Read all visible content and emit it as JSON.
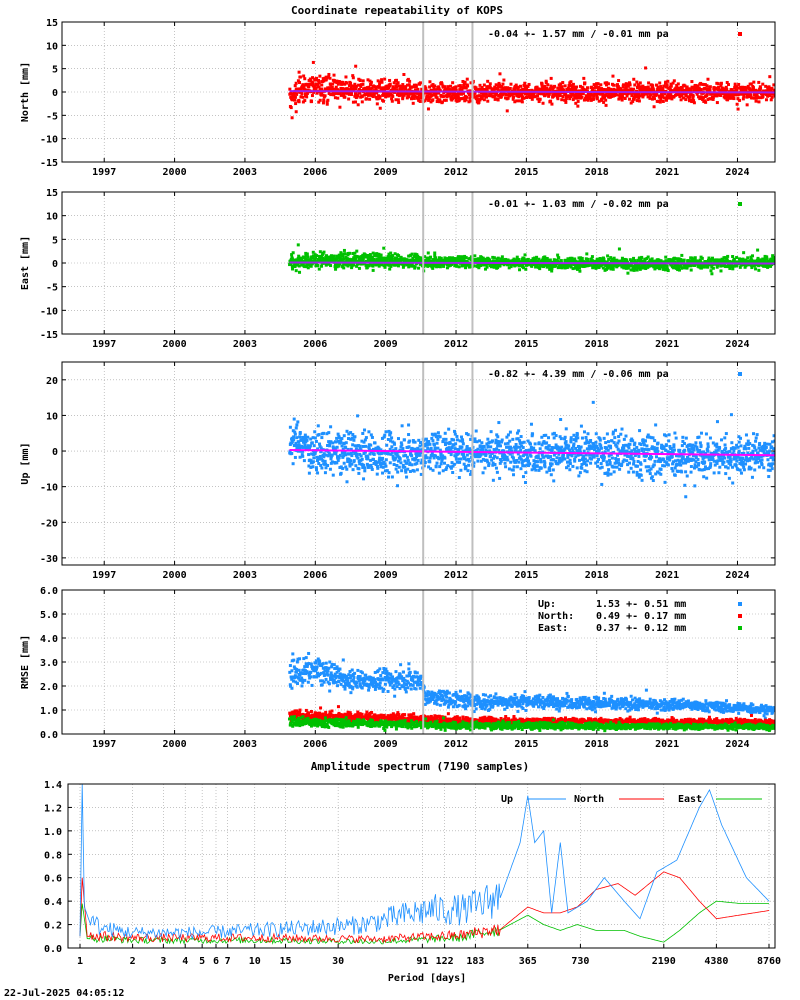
{
  "timestamp": "22-Jul-2025 04:05:12",
  "chart_data": [
    {
      "id": "north",
      "type": "scatter",
      "title": "Coordinate repeatability of KOPS",
      "ylabel": "North [mm]",
      "ylim": [
        -15,
        15
      ],
      "yticks": [
        -15,
        -10,
        -5,
        0,
        5,
        10,
        15
      ],
      "xlim": [
        1995.2,
        2025.6
      ],
      "xticks": [
        1997,
        2000,
        2003,
        2006,
        2009,
        2012,
        2015,
        2018,
        2021,
        2024
      ],
      "grid": true,
      "legend_position": "top-right",
      "color": "#ff0000",
      "trend_color": "#a020f0",
      "stats": "-0.04 +- 1.57 mm / -0.01 mm pa",
      "data_start": 2004.9,
      "data_end": 2025.6,
      "trend": [
        [
          2004.9,
          0.2
        ],
        [
          2025.6,
          -0.1
        ]
      ],
      "band": [
        [
          2004.9,
          -4.0,
          0.5
        ],
        [
          2005.3,
          -2.5,
          3.5
        ],
        [
          2006.0,
          -2.0,
          4.0
        ],
        [
          2007.5,
          -2.0,
          3.0
        ],
        [
          2010.4,
          -2.5,
          2.0
        ],
        [
          2013.0,
          -2.0,
          2.0
        ],
        [
          2018.0,
          -2.0,
          2.0
        ],
        [
          2025.6,
          -2.0,
          2.0
        ]
      ],
      "gaps": [
        2010.6,
        2012.7
      ]
    },
    {
      "id": "east",
      "type": "scatter",
      "ylabel": "East [mm]",
      "ylim": [
        -15,
        15
      ],
      "yticks": [
        -15,
        -10,
        -5,
        0,
        5,
        10,
        15
      ],
      "xlim": [
        1995.2,
        2025.6
      ],
      "xticks": [
        1997,
        2000,
        2003,
        2006,
        2009,
        2012,
        2015,
        2018,
        2021,
        2024
      ],
      "grid": true,
      "legend_position": "top-right",
      "color": "#00c000",
      "trend_color": "#a020f0",
      "stats": "-0.01 +- 1.03 mm / -0.02 mm pa",
      "data_start": 2004.9,
      "data_end": 2025.6,
      "trend": [
        [
          2004.9,
          0.1
        ],
        [
          2025.6,
          -0.1
        ]
      ],
      "band": [
        [
          2004.9,
          -1.5,
          2.0
        ],
        [
          2006.0,
          -1.0,
          2.2
        ],
        [
          2010.0,
          -1.0,
          1.8
        ],
        [
          2015.0,
          -1.0,
          1.2
        ],
        [
          2020.0,
          -1.5,
          1.0
        ],
        [
          2025.6,
          -1.0,
          1.5
        ]
      ],
      "gaps": [
        2010.6,
        2012.7
      ]
    },
    {
      "id": "up",
      "type": "scatter",
      "ylabel": "Up [mm]",
      "ylim": [
        -32,
        25
      ],
      "yticks": [
        -30,
        -20,
        -10,
        0,
        10,
        20
      ],
      "xlim": [
        1995.2,
        2025.6
      ],
      "xticks": [
        1997,
        2000,
        2003,
        2006,
        2009,
        2012,
        2015,
        2018,
        2021,
        2024
      ],
      "grid": true,
      "legend_position": "top-right",
      "color": "#1e90ff",
      "trend_color": "#ff00ff",
      "stats": "-0.82 +- 4.39 mm / -0.06 mm pa",
      "data_start": 2004.9,
      "data_end": 2025.6,
      "trend": [
        [
          2004.9,
          0.3
        ],
        [
          2025.6,
          -1.2
        ]
      ],
      "band": [
        [
          2004.9,
          -2.0,
          9.0
        ],
        [
          2006.0,
          -6.0,
          5.0
        ],
        [
          2009.0,
          -7.0,
          5.0
        ],
        [
          2012.0,
          -6.0,
          6.0
        ],
        [
          2015.0,
          -6.0,
          5.0
        ],
        [
          2018.0,
          -6.0,
          5.0
        ],
        [
          2021.0,
          -8.0,
          5.0
        ],
        [
          2025.6,
          -6.0,
          4.0
        ]
      ],
      "gaps": [
        2010.6,
        2012.7
      ]
    },
    {
      "id": "rmse",
      "type": "scatter",
      "ylabel": "RMSE [mm]",
      "ylim": [
        0,
        6
      ],
      "yticks": [
        0.0,
        1.0,
        2.0,
        3.0,
        4.0,
        5.0,
        6.0
      ],
      "ytick_labels": [
        "0.0",
        "1.0",
        "2.0",
        "3.0",
        "4.0",
        "5.0",
        "6.0"
      ],
      "xlim": [
        1995.2,
        2025.6
      ],
      "xticks": [
        1997,
        2000,
        2003,
        2006,
        2009,
        2012,
        2015,
        2018,
        2021,
        2024
      ],
      "grid": true,
      "legend_position": "top-right",
      "legend": [
        {
          "name": "Up:",
          "stats": "1.53 +- 0.51 mm",
          "color": "#1e90ff"
        },
        {
          "name": "North:",
          "stats": "0.49 +- 0.17 mm",
          "color": "#ff0000"
        },
        {
          "name": "East:",
          "stats": "0.37 +- 0.12 mm",
          "color": "#00c000"
        }
      ],
      "series": [
        {
          "name": "Up",
          "color": "#1e90ff",
          "band": [
            [
              2004.9,
              1.9,
              3.1
            ],
            [
              2006.0,
              2.1,
              3.2
            ],
            [
              2007.5,
              1.8,
              2.6
            ],
            [
              2010.5,
              1.8,
              2.8
            ],
            [
              2010.7,
              1.2,
              1.9
            ],
            [
              2013.0,
              1.0,
              1.7
            ],
            [
              2016.0,
              1.1,
              1.6
            ],
            [
              2019.0,
              1.0,
              1.5
            ],
            [
              2022.0,
              1.0,
              1.4
            ],
            [
              2025.6,
              0.8,
              1.2
            ]
          ]
        },
        {
          "name": "North",
          "color": "#ff0000",
          "band": [
            [
              2004.9,
              0.6,
              1.0
            ],
            [
              2008.0,
              0.5,
              0.9
            ],
            [
              2012.0,
              0.4,
              0.7
            ],
            [
              2025.6,
              0.4,
              0.6
            ]
          ]
        },
        {
          "name": "East",
          "color": "#00c000",
          "band": [
            [
              2004.9,
              0.3,
              0.7
            ],
            [
              2008.0,
              0.3,
              0.6
            ],
            [
              2012.0,
              0.2,
              0.5
            ],
            [
              2025.6,
              0.2,
              0.4
            ]
          ]
        }
      ],
      "data_start": 2004.9,
      "data_end": 2025.6,
      "gaps": [
        2010.6,
        2012.7
      ]
    },
    {
      "id": "spectrum",
      "type": "line",
      "title": "Amplitude spectrum (7190 samples)",
      "xlabel": "Period [days]",
      "xscale": "log",
      "xlim": [
        1,
        8760
      ],
      "ylim": [
        0,
        1.4
      ],
      "yticks": [
        0.0,
        0.2,
        0.4,
        0.6,
        0.8,
        1.0,
        1.2,
        1.4
      ],
      "ytick_labels": [
        "0.0",
        "0.2",
        "0.4",
        "0.6",
        "0.8",
        "1.0",
        "1.2",
        "1.4"
      ],
      "xticks": [
        1,
        2,
        3,
        4,
        5,
        6,
        7,
        10,
        15,
        30,
        91,
        122,
        183,
        365,
        730,
        2190,
        4380,
        8760
      ],
      "grid": true,
      "legend_position": "top-right",
      "series": [
        {
          "name": "Up",
          "color": "#1e90ff",
          "points": [
            [
              1,
              0.1
            ],
            [
              1.03,
              1.4
            ],
            [
              1.06,
              0.35
            ],
            [
              1.15,
              0.2
            ],
            [
              1.4,
              0.15
            ],
            [
              2,
              0.12
            ],
            [
              5,
              0.12
            ],
            [
              15,
              0.15
            ],
            [
              40,
              0.18
            ],
            [
              100,
              0.3
            ],
            [
              160,
              0.3
            ],
            [
              250,
              0.4
            ],
            [
              330,
              0.9
            ],
            [
              365,
              1.3
            ],
            [
              400,
              0.9
            ],
            [
              450,
              1.0
            ],
            [
              500,
              0.3
            ],
            [
              560,
              0.9
            ],
            [
              620,
              0.3
            ],
            [
              800,
              0.4
            ],
            [
              1000,
              0.6
            ],
            [
              1300,
              0.4
            ],
            [
              1600,
              0.25
            ],
            [
              2000,
              0.65
            ],
            [
              2600,
              0.75
            ],
            [
              3500,
              1.2
            ],
            [
              4000,
              1.35
            ],
            [
              4700,
              1.05
            ],
            [
              6500,
              0.6
            ],
            [
              8760,
              0.4
            ]
          ]
        },
        {
          "name": "North",
          "color": "#ff0000",
          "points": [
            [
              1,
              0.1
            ],
            [
              1.03,
              0.6
            ],
            [
              1.1,
              0.1
            ],
            [
              2,
              0.08
            ],
            [
              10,
              0.08
            ],
            [
              50,
              0.07
            ],
            [
              150,
              0.1
            ],
            [
              250,
              0.15
            ],
            [
              365,
              0.35
            ],
            [
              450,
              0.3
            ],
            [
              560,
              0.3
            ],
            [
              700,
              0.35
            ],
            [
              900,
              0.5
            ],
            [
              1200,
              0.55
            ],
            [
              1500,
              0.45
            ],
            [
              2190,
              0.65
            ],
            [
              2700,
              0.6
            ],
            [
              3500,
              0.4
            ],
            [
              4380,
              0.25
            ],
            [
              8760,
              0.32
            ]
          ]
        },
        {
          "name": "East",
          "color": "#00c000",
          "points": [
            [
              1,
              0.1
            ],
            [
              1.03,
              0.38
            ],
            [
              1.1,
              0.08
            ],
            [
              2,
              0.06
            ],
            [
              10,
              0.06
            ],
            [
              50,
              0.05
            ],
            [
              150,
              0.08
            ],
            [
              250,
              0.15
            ],
            [
              365,
              0.28
            ],
            [
              450,
              0.2
            ],
            [
              560,
              0.15
            ],
            [
              700,
              0.2
            ],
            [
              900,
              0.15
            ],
            [
              1300,
              0.15
            ],
            [
              1600,
              0.1
            ],
            [
              2190,
              0.05
            ],
            [
              2700,
              0.15
            ],
            [
              3500,
              0.3
            ],
            [
              4380,
              0.4
            ],
            [
              6000,
              0.38
            ],
            [
              8760,
              0.38
            ]
          ]
        }
      ]
    }
  ]
}
